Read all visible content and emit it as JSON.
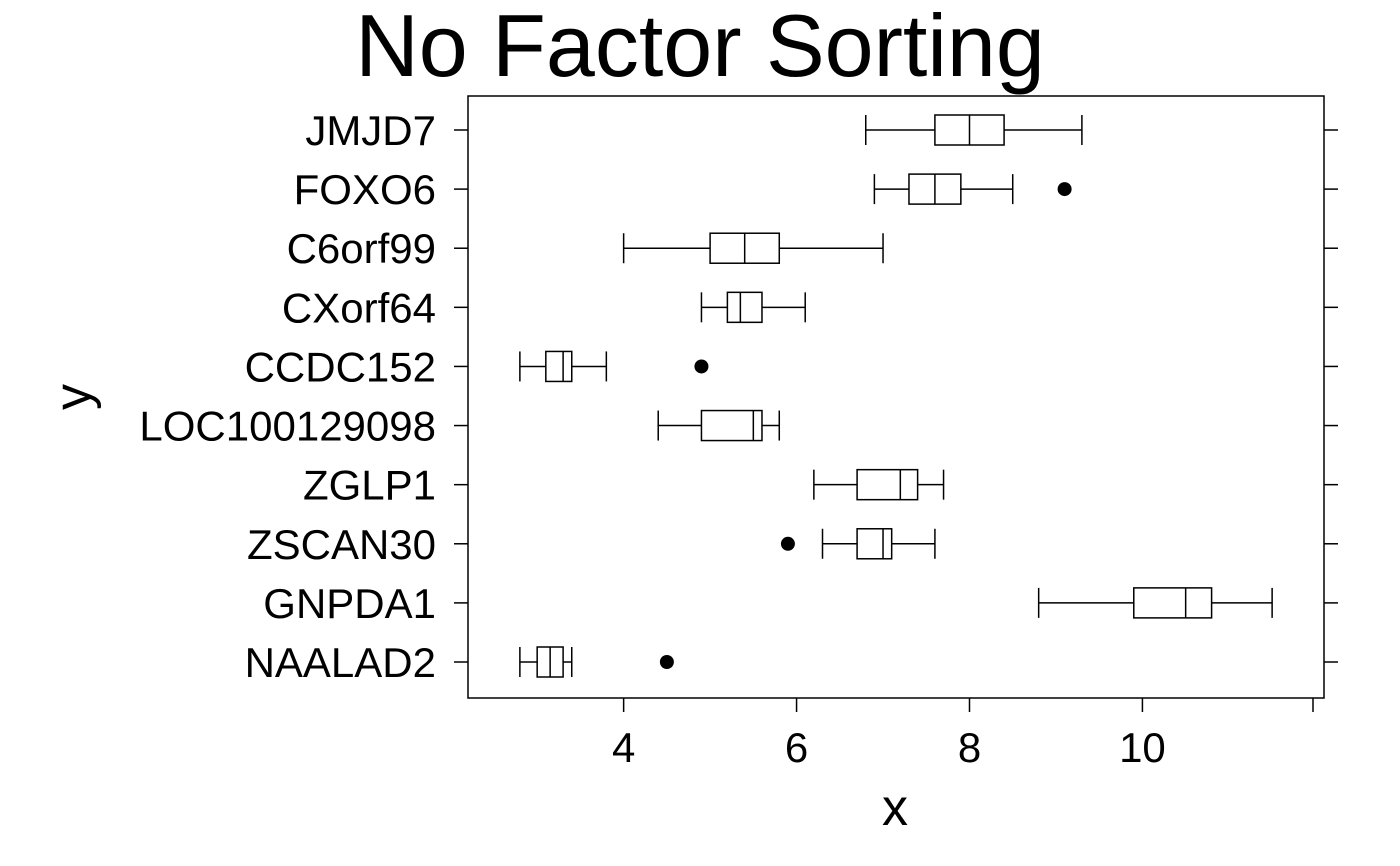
{
  "chart_data": {
    "type": "boxplot",
    "title": "No Factor Sorting",
    "xlabel": "x",
    "ylabel": "y",
    "xlim": [
      2.2,
      12.1
    ],
    "xticks": [
      4,
      6,
      8,
      10
    ],
    "categories": [
      "NAALAD2",
      "GNPDA1",
      "ZSCAN30",
      "ZGLP1",
      "LOC100129098",
      "CCDC152",
      "CXorf64",
      "C6orf99",
      "FOXO6",
      "JMJD7"
    ],
    "boxes": [
      {
        "category": "NAALAD2",
        "whisker_low": 2.8,
        "q1": 3.0,
        "median": 3.15,
        "q3": 3.3,
        "whisker_high": 3.4,
        "outliers": [
          4.5
        ]
      },
      {
        "category": "GNPDA1",
        "whisker_low": 8.8,
        "q1": 9.9,
        "median": 10.5,
        "q3": 10.8,
        "whisker_high": 11.5,
        "outliers": []
      },
      {
        "category": "ZSCAN30",
        "whisker_low": 6.3,
        "q1": 6.7,
        "median": 7.0,
        "q3": 7.1,
        "whisker_high": 7.6,
        "outliers": [
          5.9
        ]
      },
      {
        "category": "ZGLP1",
        "whisker_low": 6.2,
        "q1": 6.7,
        "median": 7.2,
        "q3": 7.4,
        "whisker_high": 7.7,
        "outliers": []
      },
      {
        "category": "LOC100129098",
        "whisker_low": 4.4,
        "q1": 4.9,
        "median": 5.5,
        "q3": 5.6,
        "whisker_high": 5.8,
        "outliers": []
      },
      {
        "category": "CCDC152",
        "whisker_low": 2.8,
        "q1": 3.1,
        "median": 3.3,
        "q3": 3.4,
        "whisker_high": 3.8,
        "outliers": [
          4.9
        ]
      },
      {
        "category": "CXorf64",
        "whisker_low": 4.9,
        "q1": 5.2,
        "median": 5.35,
        "q3": 5.6,
        "whisker_high": 6.1,
        "outliers": []
      },
      {
        "category": "C6orf99",
        "whisker_low": 4.0,
        "q1": 5.0,
        "median": 5.4,
        "q3": 5.8,
        "whisker_high": 7.0,
        "outliers": []
      },
      {
        "category": "FOXO6",
        "whisker_low": 6.9,
        "q1": 7.3,
        "median": 7.6,
        "q3": 7.9,
        "whisker_high": 8.5,
        "outliers": [
          9.1
        ]
      },
      {
        "category": "JMJD7",
        "whisker_low": 6.8,
        "q1": 7.6,
        "median": 8.0,
        "q3": 8.4,
        "whisker_high": 9.3,
        "outliers": []
      }
    ],
    "grid": false,
    "legend": "none"
  }
}
